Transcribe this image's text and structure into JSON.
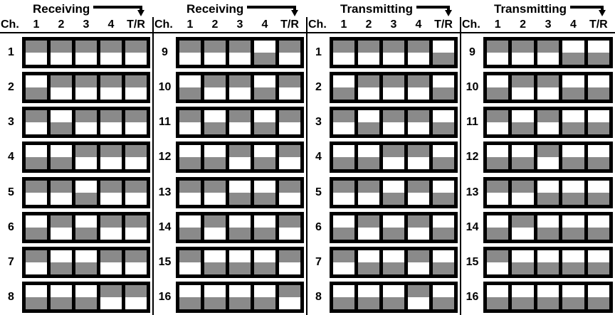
{
  "colors": {
    "switch_on": "#8a8a8a",
    "frame": "#000000",
    "background": "#ffffff"
  },
  "header_columns": [
    "Ch.",
    "1",
    "2",
    "3",
    "4",
    "T/R"
  ],
  "sections": [
    {
      "title": "Receiving",
      "tr_position": "up",
      "channels": [
        {
          "ch": "1",
          "switches": [
            "up",
            "up",
            "up",
            "up",
            "up"
          ]
        },
        {
          "ch": "2",
          "switches": [
            "down",
            "up",
            "up",
            "up",
            "up"
          ]
        },
        {
          "ch": "3",
          "switches": [
            "up",
            "down",
            "up",
            "up",
            "up"
          ]
        },
        {
          "ch": "4",
          "switches": [
            "down",
            "down",
            "up",
            "up",
            "up"
          ]
        },
        {
          "ch": "5",
          "switches": [
            "up",
            "up",
            "down",
            "up",
            "up"
          ]
        },
        {
          "ch": "6",
          "switches": [
            "down",
            "up",
            "down",
            "up",
            "up"
          ]
        },
        {
          "ch": "7",
          "switches": [
            "up",
            "down",
            "down",
            "up",
            "up"
          ]
        },
        {
          "ch": "8",
          "switches": [
            "down",
            "down",
            "down",
            "up",
            "up"
          ]
        }
      ]
    },
    {
      "title": "Receiving",
      "tr_position": "up",
      "channels": [
        {
          "ch": "9",
          "switches": [
            "up",
            "up",
            "up",
            "down",
            "up"
          ]
        },
        {
          "ch": "10",
          "switches": [
            "down",
            "up",
            "up",
            "down",
            "up"
          ]
        },
        {
          "ch": "11",
          "switches": [
            "up",
            "down",
            "up",
            "down",
            "up"
          ]
        },
        {
          "ch": "12",
          "switches": [
            "down",
            "down",
            "up",
            "down",
            "up"
          ]
        },
        {
          "ch": "13",
          "switches": [
            "up",
            "up",
            "down",
            "down",
            "up"
          ]
        },
        {
          "ch": "14",
          "switches": [
            "down",
            "up",
            "down",
            "down",
            "up"
          ]
        },
        {
          "ch": "15",
          "switches": [
            "up",
            "down",
            "down",
            "down",
            "up"
          ]
        },
        {
          "ch": "16",
          "switches": [
            "down",
            "down",
            "down",
            "down",
            "up"
          ]
        }
      ]
    },
    {
      "title": "Transmitting",
      "tr_position": "down",
      "channels": [
        {
          "ch": "1",
          "switches": [
            "up",
            "up",
            "up",
            "up",
            "down"
          ]
        },
        {
          "ch": "2",
          "switches": [
            "down",
            "up",
            "up",
            "up",
            "down"
          ]
        },
        {
          "ch": "3",
          "switches": [
            "up",
            "down",
            "up",
            "up",
            "down"
          ]
        },
        {
          "ch": "4",
          "switches": [
            "down",
            "down",
            "up",
            "up",
            "down"
          ]
        },
        {
          "ch": "5",
          "switches": [
            "up",
            "up",
            "down",
            "up",
            "down"
          ]
        },
        {
          "ch": "6",
          "switches": [
            "down",
            "up",
            "down",
            "up",
            "down"
          ]
        },
        {
          "ch": "7",
          "switches": [
            "up",
            "down",
            "down",
            "up",
            "down"
          ]
        },
        {
          "ch": "8",
          "switches": [
            "down",
            "down",
            "down",
            "up",
            "down"
          ]
        }
      ]
    },
    {
      "title": "Transmitting",
      "tr_position": "down",
      "channels": [
        {
          "ch": "9",
          "switches": [
            "up",
            "up",
            "up",
            "down",
            "down"
          ]
        },
        {
          "ch": "10",
          "switches": [
            "down",
            "up",
            "up",
            "down",
            "down"
          ]
        },
        {
          "ch": "11",
          "switches": [
            "up",
            "down",
            "up",
            "down",
            "down"
          ]
        },
        {
          "ch": "12",
          "switches": [
            "down",
            "down",
            "up",
            "down",
            "down"
          ]
        },
        {
          "ch": "13",
          "switches": [
            "up",
            "up",
            "down",
            "down",
            "down"
          ]
        },
        {
          "ch": "14",
          "switches": [
            "down",
            "up",
            "down",
            "down",
            "down"
          ]
        },
        {
          "ch": "15",
          "switches": [
            "up",
            "down",
            "down",
            "down",
            "down"
          ]
        },
        {
          "ch": "16",
          "switches": [
            "down",
            "down",
            "down",
            "down",
            "down"
          ]
        }
      ]
    }
  ]
}
